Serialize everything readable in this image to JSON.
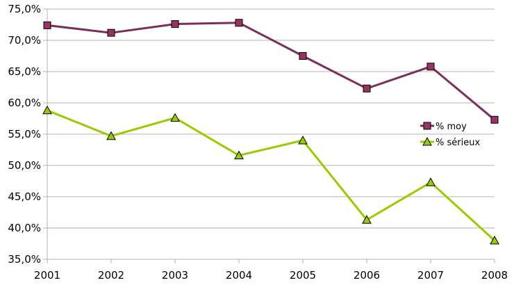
{
  "chart_data": {
    "type": "line",
    "title": "",
    "xlabel": "",
    "ylabel": "",
    "categories": [
      "2001",
      "2002",
      "2003",
      "2004",
      "2005",
      "2006",
      "2007",
      "2008"
    ],
    "ylim": [
      0.35,
      0.75
    ],
    "yticks": [
      0.35,
      0.4,
      0.45,
      0.5,
      0.55,
      0.6,
      0.65,
      0.7,
      0.75
    ],
    "ytick_labels": [
      "35,0%",
      "40,0%",
      "45,0%",
      "50,0%",
      "55,0%",
      "60,0%",
      "65,0%",
      "70,0%",
      "75,0%"
    ],
    "grid": "horizontal",
    "legend_position": "right",
    "series": [
      {
        "name": "% moy",
        "color": "#7b2e5a",
        "marker": "square",
        "marker_color": "#993366",
        "values": [
          0.724,
          0.712,
          0.726,
          0.728,
          0.675,
          0.623,
          0.658,
          0.573
        ]
      },
      {
        "name": "% sérieux",
        "color": "#99cc00",
        "marker": "triangle",
        "marker_color": "#99cc00",
        "values": [
          0.588,
          0.547,
          0.576,
          0.516,
          0.54,
          0.413,
          0.473,
          0.38
        ]
      }
    ]
  }
}
